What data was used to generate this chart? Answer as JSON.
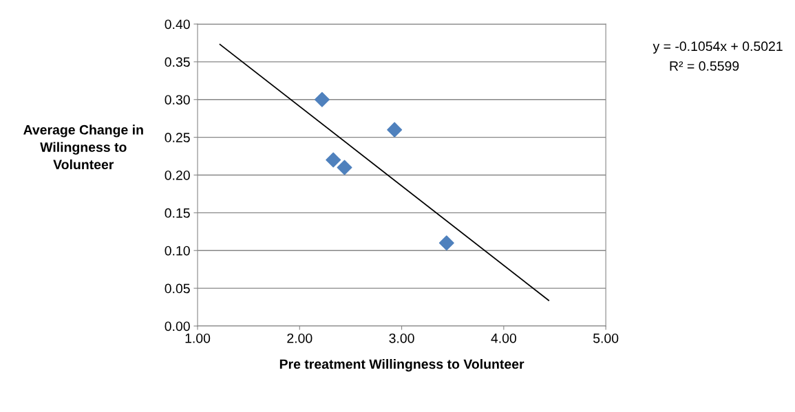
{
  "chart_data": {
    "type": "scatter",
    "xlabel": "Pre treatment Willingness to Volunteer",
    "ylabel": "Average Change in\nWilingness to\nVolunteer",
    "series": [
      {
        "color": "#4f81bd",
        "marker": "diamond",
        "x": [
          2.22,
          2.93,
          2.33,
          2.44,
          3.44
        ],
        "values": [
          0.3,
          0.26,
          0.22,
          0.21,
          0.11
        ]
      },
      {
        "type": "line",
        "color": "#000000",
        "marker": "none",
        "line_style": "solid",
        "x": [
          1.22,
          4.44
        ],
        "values": [
          0.373,
          0.034
        ]
      }
    ],
    "annotations": [
      "y = -0.1054x + 0.5021",
      "R² = 0.5599"
    ],
    "xlim": [
      1.0,
      5.0
    ],
    "xticks": [
      {
        "value": 1,
        "label": "1.00"
      },
      {
        "value": 2,
        "label": "2.00"
      },
      {
        "value": 3,
        "label": "3.00"
      },
      {
        "value": 4,
        "label": "4.00"
      },
      {
        "value": 5,
        "label": "5.00"
      }
    ],
    "ylim": [
      0.0,
      0.4
    ],
    "yticks": [
      {
        "value": 0,
        "label": "0.00"
      },
      {
        "value": 0.05,
        "label": "0.05"
      },
      {
        "value": 0.1,
        "label": "0.10"
      },
      {
        "value": 0.15,
        "label": "0.15"
      },
      {
        "value": 0.2,
        "label": "0.20"
      },
      {
        "value": 0.25,
        "label": "0.25"
      },
      {
        "value": 0.3,
        "label": "0.30"
      },
      {
        "value": 0.35,
        "label": "0.35"
      },
      {
        "value": 0.4,
        "label": "0.40"
      }
    ],
    "grid": "y"
  }
}
